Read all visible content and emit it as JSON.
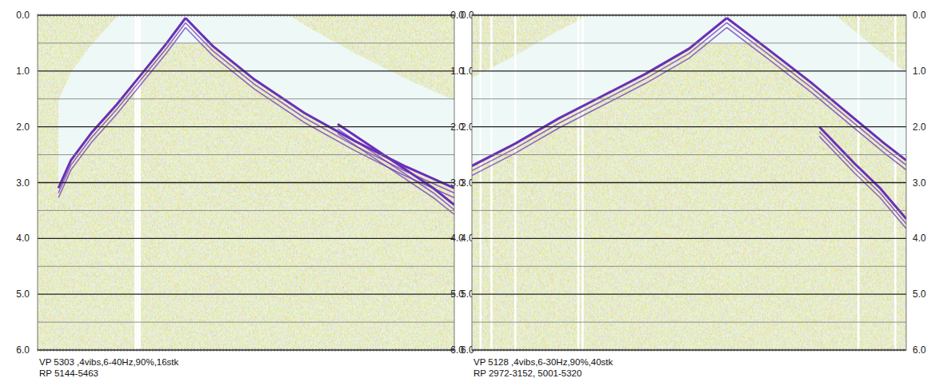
{
  "chart_data": [
    {
      "type": "seismic",
      "caption": [
        "VP 5303 ,4vibs,6-40Hz,90%,16stk",
        "RP 5144-5463"
      ],
      "xlim": [
        0,
        1
      ],
      "ylim": [
        0,
        6
      ],
      "yticks": [
        {
          "value": 0,
          "label": "0.0"
        },
        {
          "value": 1,
          "label": "1.0"
        },
        {
          "value": 2,
          "label": "2.0"
        },
        {
          "value": 3,
          "label": "3.0"
        },
        {
          "value": 4,
          "label": "4.0"
        },
        {
          "value": 5,
          "label": "5.0"
        },
        {
          "value": 6,
          "label": "6.0"
        }
      ],
      "grid": true,
      "tick_labels": "y",
      "dead_traces": [
        0.245,
        0.24,
        0.235
      ],
      "series": [
        {
          "color": "#6a2fb8",
          "x": [
            0.355,
            0.31,
            0.25,
            0.19,
            0.13,
            0.08,
            0.05
          ],
          "values": [
            0.05,
            0.5,
            1.05,
            1.6,
            2.1,
            2.6,
            3.1
          ]
        },
        {
          "color": "#6a2fb8",
          "x": [
            0.355,
            0.42,
            0.52,
            0.64,
            0.76,
            0.88,
            1.0
          ],
          "values": [
            0.05,
            0.55,
            1.15,
            1.75,
            2.25,
            2.7,
            3.1
          ]
        },
        {
          "color": "#6a2fb8",
          "x": [
            0.72,
            0.84,
            0.95,
            1.0
          ],
          "values": [
            1.95,
            2.55,
            3.1,
            3.4
          ]
        }
      ]
    },
    {
      "type": "seismic",
      "caption": [
        "VP 5128 ,4vibs,6-30Hz,90%,40stk",
        "RP 2972-3152, 5001-5320"
      ],
      "xlim": [
        0,
        1
      ],
      "ylim": [
        0,
        6
      ],
      "yticks": [
        {
          "value": 0,
          "label": "0.0"
        },
        {
          "value": 1,
          "label": "1.0"
        },
        {
          "value": 2,
          "label": "2.0"
        },
        {
          "value": 3,
          "label": "3.0"
        },
        {
          "value": 4,
          "label": "4.0"
        },
        {
          "value": 5,
          "label": "5.0"
        },
        {
          "value": 6,
          "label": "6.0"
        }
      ],
      "grid": true,
      "tick_labels": "y",
      "dead_traces": [
        0.02,
        0.045,
        0.1,
        0.245,
        0.255,
        0.89,
        0.975
      ],
      "series": [
        {
          "color": "#6a2fb8",
          "x": [
            0.587,
            0.5,
            0.4,
            0.3,
            0.2,
            0.1,
            0.0
          ],
          "values": [
            0.05,
            0.6,
            1.05,
            1.45,
            1.85,
            2.3,
            2.7
          ]
        },
        {
          "color": "#6a2fb8",
          "x": [
            0.587,
            0.68,
            0.78,
            0.88,
            0.95,
            1.0
          ],
          "values": [
            0.05,
            0.6,
            1.2,
            1.85,
            2.3,
            2.6
          ]
        },
        {
          "color": "#6a2fb8",
          "x": [
            0.8,
            0.88,
            0.94,
            1.0
          ],
          "values": [
            2.0,
            2.65,
            3.1,
            3.65
          ]
        }
      ]
    }
  ]
}
